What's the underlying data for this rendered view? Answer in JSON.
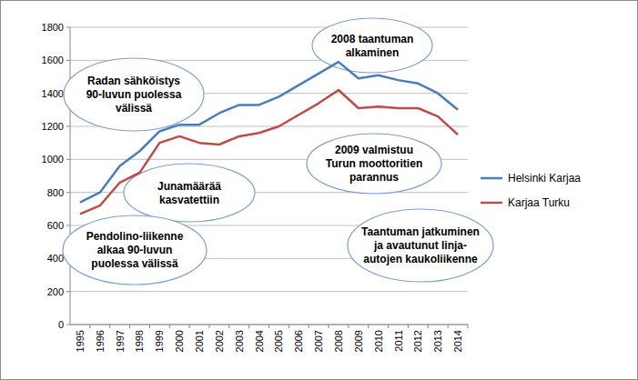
{
  "chart_data": {
    "type": "line",
    "categories": [
      "1995",
      "1996",
      "1997",
      "1998",
      "1999",
      "2000",
      "2001",
      "2002",
      "2003",
      "2004",
      "2005",
      "2006",
      "2007",
      "2008",
      "2009",
      "2010",
      "2011",
      "2012",
      "2013",
      "2014"
    ],
    "series": [
      {
        "name": "Helsinki Karjaa",
        "color": "#4a7ebb",
        "values": [
          740,
          800,
          960,
          1050,
          1170,
          1210,
          1210,
          1280,
          1330,
          1330,
          1380,
          1450,
          1520,
          1590,
          1490,
          1510,
          1480,
          1460,
          1400,
          1300
        ]
      },
      {
        "name": "Karjaa Turku",
        "color": "#be4b48",
        "values": [
          670,
          720,
          860,
          920,
          1100,
          1140,
          1100,
          1090,
          1140,
          1160,
          1200,
          1270,
          1340,
          1420,
          1310,
          1320,
          1310,
          1310,
          1260,
          1150
        ]
      }
    ],
    "ylim": [
      0,
      1800
    ],
    "yticks": [
      0,
      200,
      400,
      600,
      800,
      1000,
      1200,
      1400,
      1600,
      1800
    ],
    "grid": true,
    "legend": "right",
    "annotations": [
      {
        "lines": [
          "Radan sähköistys",
          "90-luvun puolessa",
          "välissä"
        ]
      },
      {
        "lines": [
          "Junamäärää",
          "kasvatettiin"
        ]
      },
      {
        "lines": [
          "Pendolino-liikenne",
          "alkaa 90-luvun",
          "puolessa välissä"
        ]
      },
      {
        "lines": [
          "2008 taantuman",
          "alkaminen"
        ]
      },
      {
        "lines": [
          "2009 valmistuu",
          "Turun moottoritien",
          "parannus"
        ]
      },
      {
        "lines": [
          "Taantuman jatkuminen",
          "ja avautunut linja-",
          "autojen kaukoliikenne"
        ]
      }
    ]
  }
}
